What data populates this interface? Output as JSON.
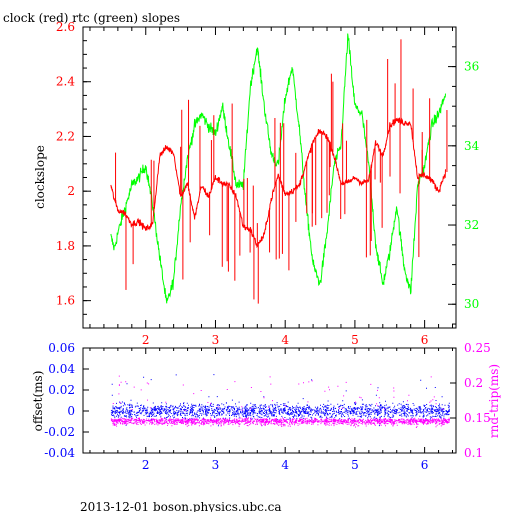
{
  "chart_data": [
    {
      "type": "line",
      "title": "clock (red) rtc (green) slopes",
      "ylabel": "clockslope",
      "xlim": [
        1.1,
        6.45
      ],
      "ylim": [
        1.5,
        2.6
      ],
      "y2lim": [
        29.4,
        37.0
      ],
      "x_ticks": [
        2,
        3,
        4,
        5,
        6
      ],
      "y_ticks": [
        "1.6",
        "1.8",
        "2",
        "2.2",
        "2.4",
        "2.6"
      ],
      "y2_ticks": [
        "30",
        "32",
        "34",
        "36"
      ],
      "colors": {
        "clock": "#ff0000",
        "rtc": "#00ff00",
        "axes": "#000000",
        "frame": "#000000"
      },
      "series": [
        {
          "name": "clock",
          "color": "#ff0000",
          "axis": "left",
          "x": [
            1.5,
            1.55,
            1.6,
            1.7,
            1.8,
            1.9,
            2.0,
            2.1,
            2.2,
            2.3,
            2.4,
            2.5,
            2.6,
            2.7,
            2.8,
            2.9,
            3.0,
            3.1,
            3.2,
            3.3,
            3.4,
            3.5,
            3.6,
            3.7,
            3.8,
            3.9,
            4.0,
            4.1,
            4.2,
            4.3,
            4.4,
            4.5,
            4.6,
            4.7,
            4.8,
            4.9,
            5.0,
            5.1,
            5.2,
            5.3,
            5.4,
            5.5,
            5.6,
            5.7,
            5.8,
            5.9,
            6.0,
            6.1,
            6.2,
            6.3
          ],
          "y": [
            2.02,
            1.97,
            1.93,
            1.92,
            1.88,
            1.89,
            1.86,
            1.88,
            2.13,
            2.16,
            2.14,
            1.98,
            2.03,
            1.9,
            2.02,
            1.98,
            2.05,
            2.03,
            2.02,
            1.98,
            1.87,
            1.86,
            1.8,
            1.84,
            1.97,
            2.06,
            1.99,
            2.0,
            2.02,
            2.1,
            2.18,
            2.22,
            2.2,
            2.13,
            2.03,
            2.03,
            2.05,
            2.03,
            2.04,
            2.18,
            2.13,
            2.24,
            2.26,
            2.25,
            2.25,
            2.05,
            2.06,
            2.04,
            2.0,
            2.07
          ]
        },
        {
          "name": "rtc",
          "color": "#00ff00",
          "axis": "right",
          "x": [
            1.5,
            1.55,
            1.6,
            1.7,
            1.8,
            1.9,
            2.0,
            2.1,
            2.2,
            2.3,
            2.4,
            2.5,
            2.6,
            2.7,
            2.8,
            2.9,
            3.0,
            3.1,
            3.2,
            3.3,
            3.4,
            3.5,
            3.6,
            3.7,
            3.8,
            3.9,
            4.0,
            4.1,
            4.2,
            4.3,
            4.4,
            4.5,
            4.6,
            4.7,
            4.8,
            4.9,
            5.0,
            5.1,
            5.2,
            5.3,
            5.4,
            5.5,
            5.6,
            5.7,
            5.8,
            5.9,
            6.0,
            6.1,
            6.2,
            6.3
          ],
          "y": [
            31.7,
            31.4,
            31.8,
            32.4,
            33.0,
            33.2,
            33.5,
            32.5,
            31.2,
            30.0,
            30.6,
            32.5,
            33.7,
            34.5,
            34.8,
            34.5,
            34.3,
            35.0,
            34.0,
            33.0,
            33.0,
            35.5,
            36.5,
            35.0,
            33.8,
            33.5,
            35.2,
            36.0,
            34.5,
            32.5,
            31.0,
            30.5,
            31.8,
            33.5,
            34.0,
            36.8,
            35.0,
            34.8,
            33.5,
            31.5,
            30.5,
            31.3,
            32.5,
            31.0,
            30.3,
            33.0,
            33.5,
            34.5,
            34.8,
            35.3
          ]
        }
      ]
    },
    {
      "type": "scatter",
      "ylabel": "offset(ms)",
      "y2label": "rnd-trip(ms)",
      "xlim": [
        1.1,
        6.45
      ],
      "ylim": [
        -0.04,
        0.06
      ],
      "y2lim": [
        0.1,
        0.25
      ],
      "x_ticks": [
        2,
        3,
        4,
        5,
        6
      ],
      "y_ticks": [
        "-0.04",
        "-0.02",
        "0",
        "0.02",
        "0.04",
        "0.06"
      ],
      "y2_ticks": [
        "0.1",
        "0.15",
        "0.2",
        "0.25"
      ],
      "colors": {
        "offset": "#0000ff",
        "rnd_trip": "#ff00ff"
      },
      "series": [
        {
          "name": "offset",
          "color": "#0000ff",
          "axis": "left",
          "x_range": [
            1.5,
            6.35
          ],
          "band": [
            -0.018,
            0.018
          ],
          "center": 0.0,
          "outliers_max": 0.052
        },
        {
          "name": "rnd-trip",
          "color": "#ff00ff",
          "axis": "right",
          "x_range": [
            1.5,
            6.35
          ],
          "band": [
            0.14,
            0.165
          ],
          "outliers_max": 0.25
        }
      ]
    }
  ],
  "footer": {
    "text": "2013-12-01 boson.physics.ubc.ca"
  }
}
